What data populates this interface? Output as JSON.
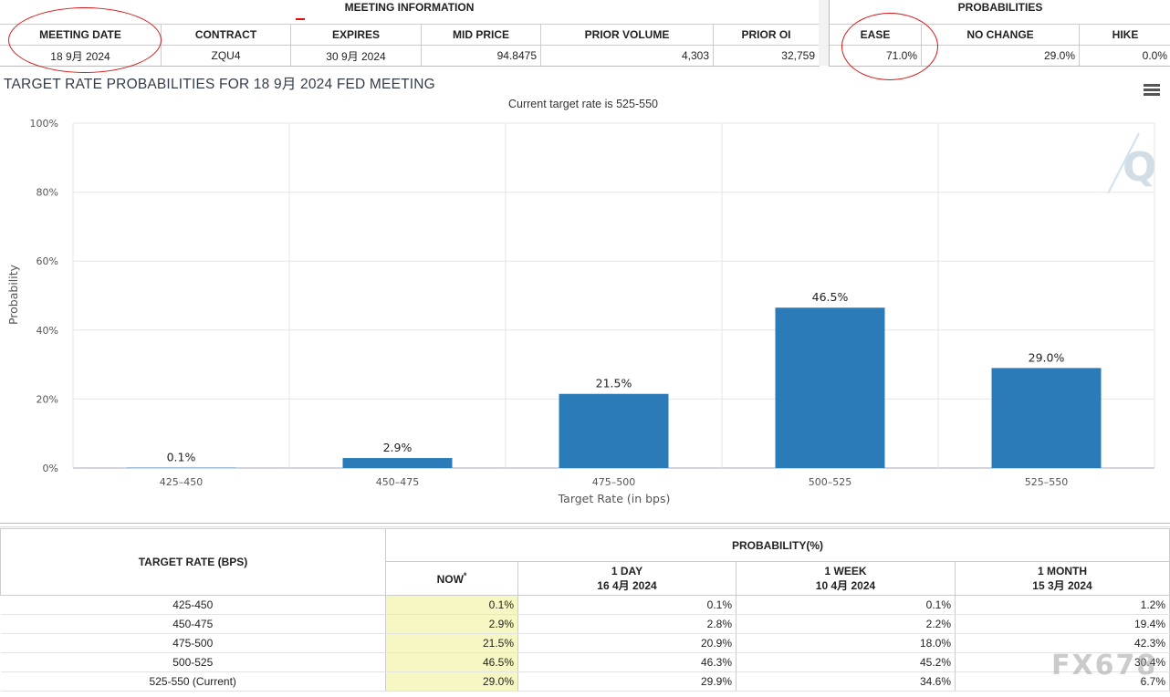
{
  "meeting_info": {
    "title": "MEETING INFORMATION",
    "headers": [
      "MEETING DATE",
      "CONTRACT",
      "EXPIRES",
      "MID PRICE",
      "PRIOR VOLUME",
      "PRIOR OI"
    ],
    "values": [
      "18 9月 2024",
      "ZQU4",
      "30 9月 2024",
      "94.8475",
      "4,303",
      "32,759"
    ]
  },
  "probabilities": {
    "title": "PROBABILITIES",
    "headers": [
      "EASE",
      "NO CHANGE",
      "HIKE"
    ],
    "values": [
      "71.0%",
      "29.0%",
      "0.0%"
    ]
  },
  "annotation_color": "#d81616",
  "chart": {
    "title": "TARGET RATE PROBABILITIES FOR 18 9月 2024 FED MEETING",
    "subtitle": "Current target rate is 525-550",
    "menu_icon": "hamburger-menu-icon",
    "logo_icon": "q-logo"
  },
  "chart_data": {
    "type": "bar",
    "title": "TARGET RATE PROBABILITIES FOR 18 9月 2024 FED MEETING",
    "subtitle": "Current target rate is 525-550",
    "xlabel": "Target Rate (in bps)",
    "ylabel": "Probability",
    "categories": [
      "425-450",
      "450-475",
      "475-500",
      "500-525",
      "525-550"
    ],
    "values": [
      0.1,
      2.9,
      21.5,
      46.5,
      29.0
    ],
    "data_labels": [
      "0.1%",
      "2.9%",
      "21.5%",
      "46.5%",
      "29.0%"
    ],
    "yticks": [
      "0%",
      "20%",
      "40%",
      "60%",
      "80%",
      "100%"
    ],
    "ylim": [
      0,
      100
    ],
    "grid": true,
    "bar_color": "#2b7bb9"
  },
  "prob_table": {
    "rate_header": "TARGET RATE (BPS)",
    "group_header": "PROBABILITY(%)",
    "cols": [
      {
        "label": "NOW",
        "mark": "*",
        "date": ""
      },
      {
        "label": "1 DAY",
        "date": "16 4月 2024"
      },
      {
        "label": "1 WEEK",
        "date": "10 4月 2024"
      },
      {
        "label": "1 MONTH",
        "date": "15 3月 2024"
      }
    ],
    "rows": [
      {
        "rate": "425-450",
        "now": "0.1%",
        "d1": "0.1%",
        "w1": "0.1%",
        "m1": "1.2%"
      },
      {
        "rate": "450-475",
        "now": "2.9%",
        "d1": "2.8%",
        "w1": "2.2%",
        "m1": "19.4%"
      },
      {
        "rate": "475-500",
        "now": "21.5%",
        "d1": "20.9%",
        "w1": "18.0%",
        "m1": "42.3%"
      },
      {
        "rate": "500-525",
        "now": "46.5%",
        "d1": "46.3%",
        "w1": "45.2%",
        "m1": "30.4%"
      },
      {
        "rate": "525-550 (Current)",
        "now": "29.0%",
        "d1": "29.9%",
        "w1": "34.6%",
        "m1": "6.7%"
      }
    ]
  },
  "watermark": "FX678"
}
